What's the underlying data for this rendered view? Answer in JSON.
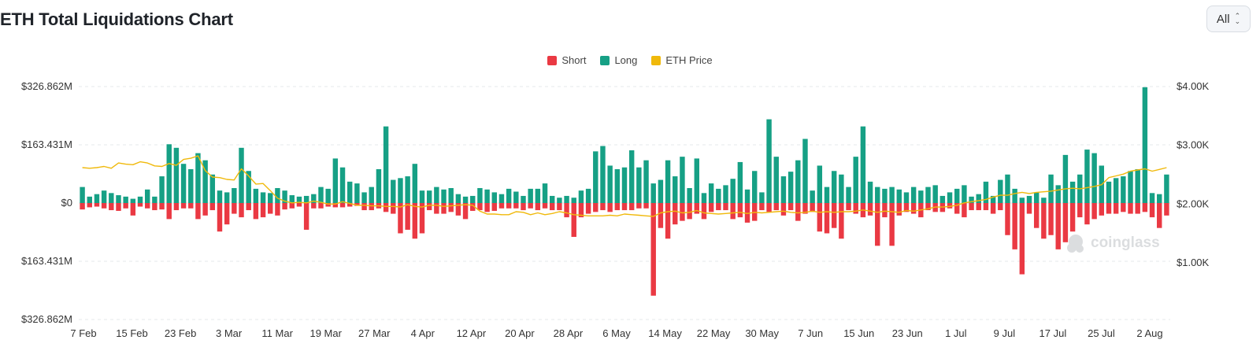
{
  "header": {
    "title": "ETH Total Liquidations Chart",
    "range_value": "All"
  },
  "legend": [
    {
      "key": "short",
      "label": "Short",
      "color": "#ea3943"
    },
    {
      "key": "long",
      "label": "Long",
      "color": "#16a085"
    },
    {
      "key": "price",
      "label": "ETH Price",
      "color": "#f0b90b"
    }
  ],
  "watermark": "coinglass",
  "chart_data": {
    "type": "bar",
    "title": "ETH Total Liquidations Chart",
    "left_axis": {
      "tick_labels": [
        "$326.862M",
        "$163.431M",
        "$0",
        "$163.431M",
        "$326.862M"
      ],
      "tick_values": [
        326.862,
        163.431,
        0,
        -163.431,
        -326.862
      ],
      "unit": "USD millions",
      "range": [
        -326.862,
        326.862
      ]
    },
    "right_axis": {
      "tick_labels": [
        "$4.00K",
        "$3.00K",
        "$2.00K",
        "$1.00K"
      ],
      "tick_values": [
        4000,
        3000,
        2000,
        1000
      ],
      "range": [
        0,
        4000
      ]
    },
    "x_tick_labels": [
      "7 Feb",
      "15 Feb",
      "23 Feb",
      "3 Mar",
      "11 Mar",
      "19 Mar",
      "27 Mar",
      "4 Apr",
      "12 Apr",
      "20 Apr",
      "28 Apr",
      "6 May",
      "14 May",
      "22 May",
      "30 May",
      "7 Jun",
      "15 Jun",
      "23 Jun",
      "1 Jul",
      "9 Jul",
      "17 Jul",
      "25 Jul",
      "2 Aug"
    ],
    "grid": true,
    "legend_position": "top-center",
    "series": [
      {
        "name": "Long",
        "color": "#16a085",
        "values": [
          45,
          18,
          25,
          35,
          28,
          22,
          18,
          12,
          18,
          38,
          18,
          75,
          165,
          155,
          110,
          95,
          140,
          120,
          80,
          35,
          30,
          42,
          155,
          90,
          40,
          30,
          28,
          42,
          35,
          22,
          18,
          20,
          25,
          45,
          40,
          125,
          100,
          60,
          55,
          30,
          45,
          95,
          215,
          65,
          70,
          75,
          110,
          35,
          35,
          45,
          38,
          42,
          25,
          18,
          20,
          42,
          38,
          30,
          25,
          40,
          32,
          20,
          40,
          40,
          55,
          20,
          15,
          20,
          15,
          35,
          40,
          145,
          160,
          105,
          95,
          100,
          148,
          100,
          120,
          55,
          65,
          120,
          75,
          130,
          42,
          125,
          28,
          55,
          40,
          50,
          68,
          115,
          38,
          90,
          30,
          235,
          130,
          75,
          88,
          120,
          180,
          35,
          105,
          45,
          90,
          80,
          45,
          130,
          215,
          60,
          45,
          40,
          45,
          38,
          30,
          45,
          35,
          45,
          50,
          20,
          30,
          40,
          50,
          18,
          25,
          60,
          20,
          65,
          80,
          40,
          15,
          20,
          30,
          15,
          80,
          50,
          135,
          60,
          80,
          150,
          140,
          105,
          60,
          70,
          75,
          90,
          95,
          325,
          28,
          25,
          80
        ]
      },
      {
        "name": "Short",
        "color": "#ea3943",
        "values": [
          18,
          12,
          10,
          15,
          20,
          22,
          15,
          35,
          10,
          15,
          20,
          18,
          45,
          20,
          15,
          15,
          45,
          35,
          20,
          80,
          60,
          30,
          40,
          20,
          45,
          40,
          30,
          35,
          18,
          15,
          10,
          75,
          15,
          15,
          10,
          12,
          12,
          10,
          8,
          20,
          20,
          15,
          25,
          30,
          85,
          75,
          100,
          85,
          20,
          30,
          30,
          25,
          35,
          45,
          22,
          20,
          25,
          22,
          15,
          15,
          15,
          20,
          15,
          20,
          15,
          20,
          20,
          40,
          95,
          40,
          30,
          25,
          20,
          25,
          20,
          20,
          20,
          15,
          15,
          260,
          70,
          100,
          60,
          50,
          45,
          30,
          45,
          25,
          20,
          20,
          45,
          40,
          55,
          50,
          20,
          25,
          20,
          35,
          20,
          50,
          30,
          25,
          80,
          85,
          70,
          100,
          20,
          30,
          40,
          35,
          120,
          40,
          120,
          35,
          25,
          30,
          40,
          20,
          25,
          25,
          15,
          30,
          40,
          20,
          20,
          20,
          30,
          20,
          90,
          130,
          200,
          30,
          70,
          100,
          90,
          130,
          110,
          80,
          40,
          60,
          45,
          35,
          30,
          30,
          25,
          30,
          30,
          25,
          40,
          70,
          35
        ]
      },
      {
        "name": "ETH Price",
        "color": "#f0b90b",
        "values": [
          2620,
          2610,
          2620,
          2640,
          2610,
          2700,
          2680,
          2670,
          2720,
          2700,
          2650,
          2640,
          2690,
          2660,
          2760,
          2780,
          2820,
          2570,
          2460,
          2450,
          2420,
          2410,
          2600,
          2480,
          2340,
          2350,
          2230,
          2100,
          2050,
          2020,
          2030,
          2020,
          2050,
          2030,
          2000,
          2000,
          2040,
          2010,
          1980,
          1980,
          1970,
          1970,
          1960,
          1960,
          1950,
          1990,
          1960,
          1950,
          1980,
          1980,
          1960,
          1970,
          1980,
          1990,
          1980,
          1880,
          1830,
          1830,
          1820,
          1820,
          1870,
          1860,
          1820,
          1850,
          1820,
          1840,
          1870,
          1850,
          1820,
          1810,
          1800,
          1800,
          1800,
          1810,
          1800,
          1830,
          1820,
          1810,
          1800,
          1790,
          1850,
          1870,
          1880,
          1850,
          1860,
          1890,
          1850,
          1840,
          1830,
          1840,
          1850,
          1860,
          1840,
          1860,
          1850,
          1860,
          1870,
          1880,
          1860,
          1850,
          1860,
          1880,
          1860,
          1870,
          1860,
          1870,
          1870,
          1880,
          1900,
          1880,
          1860,
          1880,
          1870,
          1860,
          1890,
          1880,
          1900,
          1920,
          1950,
          1950,
          1960,
          1980,
          2020,
          2040,
          2060,
          2080,
          2120,
          2150,
          2150,
          2180,
          2200,
          2180,
          2200,
          2210,
          2220,
          2240,
          2260,
          2270,
          2260,
          2280,
          2300,
          2330,
          2450,
          2480,
          2510,
          2560,
          2580,
          2600,
          2560,
          2590,
          2620
        ]
      }
    ]
  }
}
